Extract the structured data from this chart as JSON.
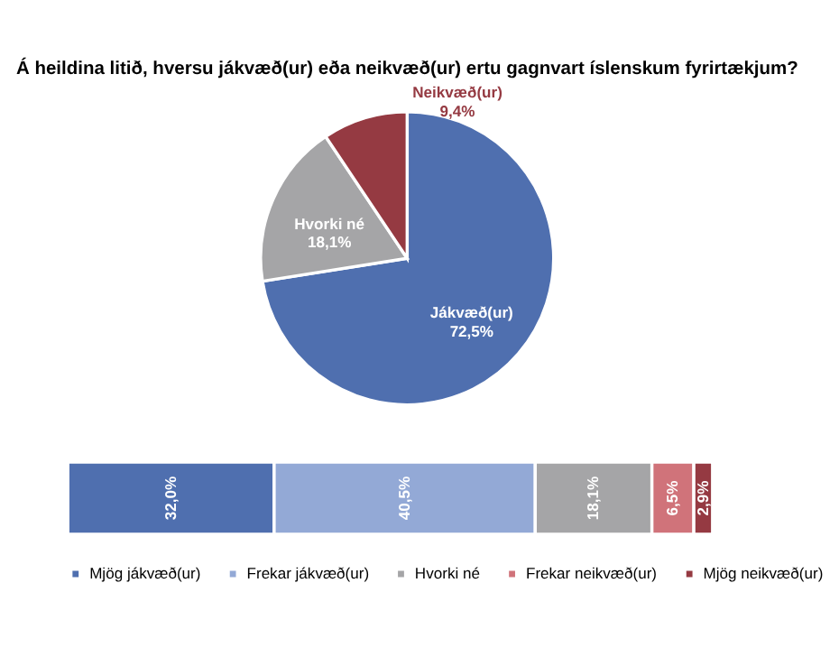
{
  "chart_data": [
    {
      "type": "pie",
      "title": "Á heildina litið, hversu jákvæð(ur) eða neikvæð(ur) ertu gagnvart íslenskum fyrirtækjum?",
      "categories": [
        "Jákvæð(ur)",
        "Hvorki né",
        "Neikvæð(ur)"
      ],
      "values": [
        72.5,
        18.1,
        9.4
      ],
      "colors": [
        "#4f6faf",
        "#a5a5a7",
        "#953a42"
      ],
      "value_labels": [
        "72,5%",
        "18,1%",
        "9,4%"
      ]
    },
    {
      "type": "bar",
      "orientation": "horizontal",
      "stacked": true,
      "categories": [
        null
      ],
      "tick_labels": false,
      "legend": "bottom",
      "series": [
        {
          "name": "Mjög jákvæð(ur)",
          "color": "#4f6faf",
          "values": [
            32.0
          ],
          "value_labels": [
            "32,0%"
          ]
        },
        {
          "name": "Frekar jákvæð(ur)",
          "color": "#93a9d6",
          "values": [
            40.5
          ],
          "value_labels": [
            "40,5%"
          ]
        },
        {
          "name": "Hvorki né",
          "color": "#a5a5a7",
          "values": [
            18.1
          ],
          "value_labels": [
            "18,1%"
          ]
        },
        {
          "name": "Frekar neikvæð(ur)",
          "color": "#d0737a",
          "values": [
            6.5
          ],
          "value_labels": [
            "6,5%"
          ]
        },
        {
          "name": "Mjög neikvæð(ur)",
          "color": "#953a42",
          "values": [
            2.9
          ],
          "value_labels": [
            "2,9%"
          ]
        }
      ]
    }
  ]
}
